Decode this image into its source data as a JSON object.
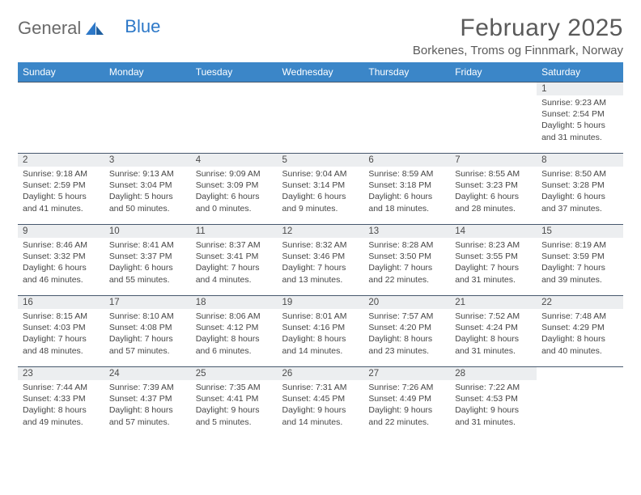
{
  "logo": {
    "text1": "General",
    "text2": "Blue"
  },
  "title": "February 2025",
  "location": "Borkenes, Troms og Finnmark, Norway",
  "colors": {
    "header_bg": "#3b86c8",
    "header_fg": "#ffffff",
    "day_strip_bg": "#eceef0",
    "border": "#46586d",
    "logo_gray": "#6a6a6a",
    "logo_blue": "#2d78c8"
  },
  "weekdays": [
    "Sunday",
    "Monday",
    "Tuesday",
    "Wednesday",
    "Thursday",
    "Friday",
    "Saturday"
  ],
  "weeks": [
    [
      null,
      null,
      null,
      null,
      null,
      null,
      {
        "n": "1",
        "sunrise": "Sunrise: 9:23 AM",
        "sunset": "Sunset: 2:54 PM",
        "daylight1": "Daylight: 5 hours",
        "daylight2": "and 31 minutes."
      }
    ],
    [
      {
        "n": "2",
        "sunrise": "Sunrise: 9:18 AM",
        "sunset": "Sunset: 2:59 PM",
        "daylight1": "Daylight: 5 hours",
        "daylight2": "and 41 minutes."
      },
      {
        "n": "3",
        "sunrise": "Sunrise: 9:13 AM",
        "sunset": "Sunset: 3:04 PM",
        "daylight1": "Daylight: 5 hours",
        "daylight2": "and 50 minutes."
      },
      {
        "n": "4",
        "sunrise": "Sunrise: 9:09 AM",
        "sunset": "Sunset: 3:09 PM",
        "daylight1": "Daylight: 6 hours",
        "daylight2": "and 0 minutes."
      },
      {
        "n": "5",
        "sunrise": "Sunrise: 9:04 AM",
        "sunset": "Sunset: 3:14 PM",
        "daylight1": "Daylight: 6 hours",
        "daylight2": "and 9 minutes."
      },
      {
        "n": "6",
        "sunrise": "Sunrise: 8:59 AM",
        "sunset": "Sunset: 3:18 PM",
        "daylight1": "Daylight: 6 hours",
        "daylight2": "and 18 minutes."
      },
      {
        "n": "7",
        "sunrise": "Sunrise: 8:55 AM",
        "sunset": "Sunset: 3:23 PM",
        "daylight1": "Daylight: 6 hours",
        "daylight2": "and 28 minutes."
      },
      {
        "n": "8",
        "sunrise": "Sunrise: 8:50 AM",
        "sunset": "Sunset: 3:28 PM",
        "daylight1": "Daylight: 6 hours",
        "daylight2": "and 37 minutes."
      }
    ],
    [
      {
        "n": "9",
        "sunrise": "Sunrise: 8:46 AM",
        "sunset": "Sunset: 3:32 PM",
        "daylight1": "Daylight: 6 hours",
        "daylight2": "and 46 minutes."
      },
      {
        "n": "10",
        "sunrise": "Sunrise: 8:41 AM",
        "sunset": "Sunset: 3:37 PM",
        "daylight1": "Daylight: 6 hours",
        "daylight2": "and 55 minutes."
      },
      {
        "n": "11",
        "sunrise": "Sunrise: 8:37 AM",
        "sunset": "Sunset: 3:41 PM",
        "daylight1": "Daylight: 7 hours",
        "daylight2": "and 4 minutes."
      },
      {
        "n": "12",
        "sunrise": "Sunrise: 8:32 AM",
        "sunset": "Sunset: 3:46 PM",
        "daylight1": "Daylight: 7 hours",
        "daylight2": "and 13 minutes."
      },
      {
        "n": "13",
        "sunrise": "Sunrise: 8:28 AM",
        "sunset": "Sunset: 3:50 PM",
        "daylight1": "Daylight: 7 hours",
        "daylight2": "and 22 minutes."
      },
      {
        "n": "14",
        "sunrise": "Sunrise: 8:23 AM",
        "sunset": "Sunset: 3:55 PM",
        "daylight1": "Daylight: 7 hours",
        "daylight2": "and 31 minutes."
      },
      {
        "n": "15",
        "sunrise": "Sunrise: 8:19 AM",
        "sunset": "Sunset: 3:59 PM",
        "daylight1": "Daylight: 7 hours",
        "daylight2": "and 39 minutes."
      }
    ],
    [
      {
        "n": "16",
        "sunrise": "Sunrise: 8:15 AM",
        "sunset": "Sunset: 4:03 PM",
        "daylight1": "Daylight: 7 hours",
        "daylight2": "and 48 minutes."
      },
      {
        "n": "17",
        "sunrise": "Sunrise: 8:10 AM",
        "sunset": "Sunset: 4:08 PM",
        "daylight1": "Daylight: 7 hours",
        "daylight2": "and 57 minutes."
      },
      {
        "n": "18",
        "sunrise": "Sunrise: 8:06 AM",
        "sunset": "Sunset: 4:12 PM",
        "daylight1": "Daylight: 8 hours",
        "daylight2": "and 6 minutes."
      },
      {
        "n": "19",
        "sunrise": "Sunrise: 8:01 AM",
        "sunset": "Sunset: 4:16 PM",
        "daylight1": "Daylight: 8 hours",
        "daylight2": "and 14 minutes."
      },
      {
        "n": "20",
        "sunrise": "Sunrise: 7:57 AM",
        "sunset": "Sunset: 4:20 PM",
        "daylight1": "Daylight: 8 hours",
        "daylight2": "and 23 minutes."
      },
      {
        "n": "21",
        "sunrise": "Sunrise: 7:52 AM",
        "sunset": "Sunset: 4:24 PM",
        "daylight1": "Daylight: 8 hours",
        "daylight2": "and 31 minutes."
      },
      {
        "n": "22",
        "sunrise": "Sunrise: 7:48 AM",
        "sunset": "Sunset: 4:29 PM",
        "daylight1": "Daylight: 8 hours",
        "daylight2": "and 40 minutes."
      }
    ],
    [
      {
        "n": "23",
        "sunrise": "Sunrise: 7:44 AM",
        "sunset": "Sunset: 4:33 PM",
        "daylight1": "Daylight: 8 hours",
        "daylight2": "and 49 minutes."
      },
      {
        "n": "24",
        "sunrise": "Sunrise: 7:39 AM",
        "sunset": "Sunset: 4:37 PM",
        "daylight1": "Daylight: 8 hours",
        "daylight2": "and 57 minutes."
      },
      {
        "n": "25",
        "sunrise": "Sunrise: 7:35 AM",
        "sunset": "Sunset: 4:41 PM",
        "daylight1": "Daylight: 9 hours",
        "daylight2": "and 5 minutes."
      },
      {
        "n": "26",
        "sunrise": "Sunrise: 7:31 AM",
        "sunset": "Sunset: 4:45 PM",
        "daylight1": "Daylight: 9 hours",
        "daylight2": "and 14 minutes."
      },
      {
        "n": "27",
        "sunrise": "Sunrise: 7:26 AM",
        "sunset": "Sunset: 4:49 PM",
        "daylight1": "Daylight: 9 hours",
        "daylight2": "and 22 minutes."
      },
      {
        "n": "28",
        "sunrise": "Sunrise: 7:22 AM",
        "sunset": "Sunset: 4:53 PM",
        "daylight1": "Daylight: 9 hours",
        "daylight2": "and 31 minutes."
      },
      null
    ]
  ]
}
